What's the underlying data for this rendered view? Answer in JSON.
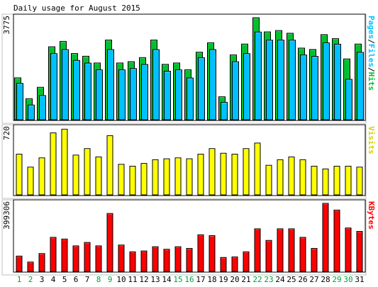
{
  "chart_data": {
    "title": "Daily usage for August 2015",
    "type": "bar",
    "days": [
      "1",
      "2",
      "3",
      "4",
      "5",
      "6",
      "7",
      "8",
      "9",
      "10",
      "11",
      "12",
      "13",
      "14",
      "15",
      "16",
      "17",
      "18",
      "19",
      "20",
      "21",
      "22",
      "23",
      "24",
      "25",
      "26",
      "27",
      "28",
      "29",
      "30",
      "31"
    ],
    "weekend_days": [
      "1",
      "2",
      "8",
      "9",
      "15",
      "16",
      "22",
      "23",
      "29",
      "30"
    ],
    "colors": {
      "hits": "#00c030",
      "files": "#00c0ff",
      "visits": "#ffff00",
      "kbytes": "#ff0000",
      "weekday_label": "#000000",
      "weekend_label": "#00a040",
      "background": "#ffffff"
    },
    "panels": [
      {
        "id": "hits-files",
        "max_label": "3775",
        "right_label": {
          "parts": [
            {
              "text": "Pages",
              "color": "#00c0ff"
            },
            {
              "text": "/",
              "color": "#000000"
            },
            {
              "text": "Files",
              "color": "#00c0ff"
            },
            {
              "text": "/",
              "color": "#000000"
            },
            {
              "text": "Hits",
              "color": "#00c030"
            }
          ]
        },
        "ymax": 3775,
        "series": [
          {
            "key": "hits",
            "values": [
              1550,
              780,
              1200,
              2700,
              2900,
              2450,
              2350,
              2100,
              2950,
              2100,
              2150,
              2300,
              2950,
              2050,
              2100,
              1850,
              2500,
              2850,
              850,
              2400,
              2800,
              3775,
              3250,
              3300,
              3200,
              2650,
              2600,
              3150,
              3000,
              2250,
              2800
            ]
          },
          {
            "key": "files",
            "values": [
              1450,
              650,
              1000,
              2550,
              2700,
              2300,
              2200,
              1950,
              2700,
              1950,
              2000,
              2150,
              2700,
              1900,
              1950,
              1650,
              2400,
              2700,
              750,
              2250,
              2550,
              3350,
              3050,
              3050,
              3050,
              2500,
              2450,
              2950,
              2900,
              1600,
              2600
            ]
          }
        ]
      },
      {
        "id": "visits",
        "max_label": "720",
        "right_label": {
          "parts": [
            {
              "text": "Visits",
              "color": "#d4d400"
            }
          ]
        },
        "ymax": 720,
        "series": [
          {
            "key": "visits",
            "values": [
              440,
              300,
              400,
              670,
              710,
              430,
              500,
              410,
              640,
              330,
              310,
              340,
              380,
              390,
              400,
              390,
              440,
              500,
              450,
              440,
              500,
              560,
              320,
              380,
              410,
              380,
              310,
              280,
              310,
              310,
              300
            ]
          }
        ]
      },
      {
        "id": "kbytes",
        "max_label": "399306",
        "right_label": {
          "parts": [
            {
              "text": "KBytes",
              "color": "#ff0000"
            }
          ]
        },
        "ymax": 399306,
        "series": [
          {
            "key": "kbytes",
            "values": [
              90000,
              55000,
              105000,
              200000,
              190000,
              150000,
              170000,
              150000,
              340000,
              155000,
              115000,
              120000,
              145000,
              130000,
              145000,
              135000,
              215000,
              210000,
              82000,
              85000,
              115000,
              250000,
              182000,
              250000,
              250000,
              200000,
              135000,
              399306,
              360000,
              255000,
              235000
            ]
          }
        ]
      }
    ]
  }
}
